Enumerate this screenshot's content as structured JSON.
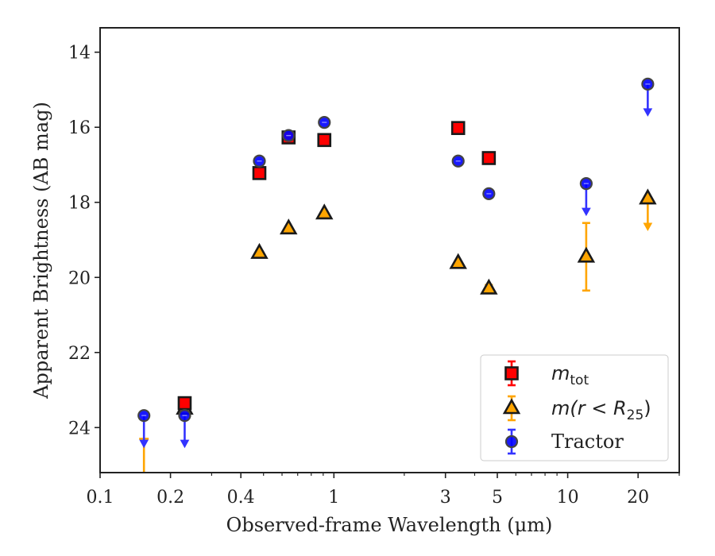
{
  "chart_data": {
    "type": "scatter",
    "title": "",
    "xlabel": "Observed-frame Wavelength (μm)",
    "ylabel": "Apparent Brightness (AB mag)",
    "xscale": "log",
    "xlim": [
      0.1,
      30
    ],
    "ylim": [
      25.2,
      13.35
    ],
    "y_inverted": true,
    "grid": false,
    "legend_position": "bottom-right",
    "x_ticks": [
      {
        "value": 0.1,
        "label": "0.1"
      },
      {
        "value": 0.2,
        "label": "0.2"
      },
      {
        "value": 0.4,
        "label": "0.4"
      },
      {
        "value": 1,
        "label": "1"
      },
      {
        "value": 3,
        "label": "3"
      },
      {
        "value": 5,
        "label": "5"
      },
      {
        "value": 10,
        "label": "10"
      },
      {
        "value": 20,
        "label": "20"
      }
    ],
    "y_ticks": [
      {
        "value": 14,
        "label": "14"
      },
      {
        "value": 16,
        "label": "16"
      },
      {
        "value": 18,
        "label": "18"
      },
      {
        "value": 20,
        "label": "20"
      },
      {
        "value": 22,
        "label": "22"
      },
      {
        "value": 24,
        "label": "24"
      }
    ],
    "series": [
      {
        "name": "m_tot",
        "legend_main": "m",
        "legend_sub": "tot",
        "marker": "square",
        "color": "#ff0000",
        "points": [
          {
            "x": 0.23,
            "y": 23.35
          },
          {
            "x": 0.48,
            "y": 17.22
          },
          {
            "x": 0.64,
            "y": 16.27
          },
          {
            "x": 0.91,
            "y": 16.34
          },
          {
            "x": 3.4,
            "y": 16.02
          },
          {
            "x": 4.6,
            "y": 16.82
          }
        ]
      },
      {
        "name": "m(r < R25)",
        "legend_main": "m(r < R",
        "legend_sub": "25",
        "legend_tail": ")",
        "marker": "triangle",
        "color": "#ffa500",
        "points": [
          {
            "x": 0.154,
            "y": 24.3,
            "upper_limit": true
          },
          {
            "x": 0.23,
            "y": 23.5,
            "err": 0.15
          },
          {
            "x": 0.48,
            "y": 19.35
          },
          {
            "x": 0.64,
            "y": 18.7
          },
          {
            "x": 0.91,
            "y": 18.3
          },
          {
            "x": 3.4,
            "y": 19.62
          },
          {
            "x": 4.6,
            "y": 20.3,
            "err": 0.1
          },
          {
            "x": 12,
            "y": 19.45,
            "err_low": 0.9,
            "err_high": 0.9
          },
          {
            "x": 22,
            "y": 17.9,
            "upper_limit": true
          }
        ]
      },
      {
        "name": "Tractor",
        "legend_main": "Tractor",
        "marker": "circle",
        "color": "#0000ff",
        "points": [
          {
            "x": 0.154,
            "y": 23.68,
            "upper_limit": true
          },
          {
            "x": 0.23,
            "y": 23.68,
            "upper_limit": true
          },
          {
            "x": 0.48,
            "y": 16.9
          },
          {
            "x": 0.64,
            "y": 16.22
          },
          {
            "x": 0.91,
            "y": 15.87
          },
          {
            "x": 3.4,
            "y": 16.9
          },
          {
            "x": 4.6,
            "y": 17.77
          },
          {
            "x": 12,
            "y": 17.5,
            "upper_limit": true
          },
          {
            "x": 22,
            "y": 14.85,
            "upper_limit": true
          }
        ]
      }
    ]
  }
}
